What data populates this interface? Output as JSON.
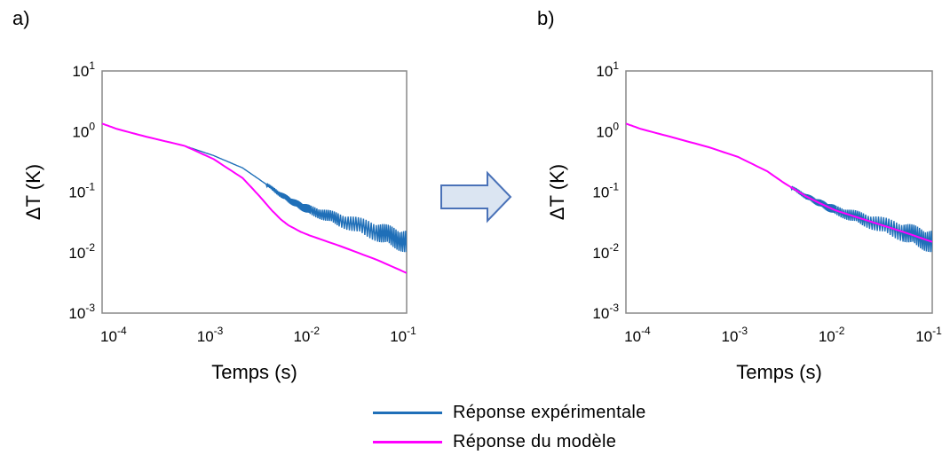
{
  "colors": {
    "experimental": "#1f6fb8",
    "model": "#ff00ff",
    "arrow_fill": "#dbe5f2",
    "arrow_stroke": "#4a72b8"
  },
  "icons": {
    "transition": "right-arrow-icon"
  },
  "legend": {
    "items": [
      {
        "label": "Réponse expérimentale",
        "series": "experimental"
      },
      {
        "label": "Réponse du modèle",
        "series": "model"
      }
    ]
  },
  "chart_data": [
    {
      "panel_label": "a)",
      "type": "line",
      "xscale": "log",
      "yscale": "log",
      "xlabel": "Temps (s)",
      "ylabel": "ΔT (K)",
      "xlim": [
        7e-05,
        0.1
      ],
      "ylim": [
        0.001,
        10
      ],
      "x_ticks": [
        0.0001,
        0.001,
        0.01,
        0.1
      ],
      "x_tick_exponents": [
        "-4",
        "-3",
        "-2",
        "-1"
      ],
      "y_ticks": [
        10,
        1,
        0.1,
        0.01,
        0.001
      ],
      "y_tick_exponents": [
        "1",
        "0",
        "-1",
        "-2",
        "-3"
      ],
      "series": [
        {
          "name": "Réponse expérimentale",
          "key": "experimental",
          "noisy": true,
          "x": [
            7e-05,
            0.0001,
            0.0002,
            0.0005,
            0.001,
            0.002,
            0.003,
            0.005,
            0.007,
            0.01,
            0.02,
            0.05,
            0.1
          ],
          "y": [
            1.35,
            1.1,
            0.82,
            0.58,
            0.4,
            0.25,
            0.16,
            0.09,
            0.065,
            0.05,
            0.035,
            0.022,
            0.015
          ]
        },
        {
          "name": "Réponse du modèle",
          "key": "model",
          "noisy": false,
          "x": [
            7e-05,
            0.0001,
            0.0002,
            0.0005,
            0.001,
            0.002,
            0.003,
            0.004,
            0.005,
            0.006,
            0.008,
            0.01,
            0.02,
            0.05,
            0.1
          ],
          "y": [
            1.35,
            1.1,
            0.82,
            0.58,
            0.35,
            0.17,
            0.085,
            0.05,
            0.035,
            0.028,
            0.022,
            0.019,
            0.013,
            0.0075,
            0.0046
          ]
        }
      ]
    },
    {
      "panel_label": "b)",
      "type": "line",
      "xscale": "log",
      "yscale": "log",
      "xlabel": "Temps (s)",
      "ylabel": "ΔT (K)",
      "xlim": [
        7e-05,
        0.1
      ],
      "ylim": [
        0.001,
        10
      ],
      "x_ticks": [
        0.0001,
        0.001,
        0.01,
        0.1
      ],
      "x_tick_exponents": [
        "-4",
        "-3",
        "-2",
        "-1"
      ],
      "y_ticks": [
        10,
        1,
        0.1,
        0.01,
        0.001
      ],
      "y_tick_exponents": [
        "1",
        "0",
        "-1",
        "-2",
        "-3"
      ],
      "series": [
        {
          "name": "Réponse expérimentale",
          "key": "experimental",
          "noisy": true,
          "x": [
            7e-05,
            0.0001,
            0.0002,
            0.0005,
            0.001,
            0.002,
            0.003,
            0.005,
            0.007,
            0.01,
            0.02,
            0.05,
            0.1
          ],
          "y": [
            1.35,
            1.1,
            0.82,
            0.55,
            0.38,
            0.22,
            0.14,
            0.085,
            0.065,
            0.05,
            0.035,
            0.022,
            0.015
          ]
        },
        {
          "name": "Réponse du modèle",
          "key": "model",
          "noisy": false,
          "x": [
            7e-05,
            0.0001,
            0.0002,
            0.0005,
            0.001,
            0.002,
            0.003,
            0.005,
            0.007,
            0.01,
            0.02,
            0.05,
            0.1
          ],
          "y": [
            1.35,
            1.1,
            0.82,
            0.55,
            0.38,
            0.22,
            0.14,
            0.085,
            0.065,
            0.05,
            0.035,
            0.022,
            0.015
          ]
        }
      ]
    }
  ]
}
